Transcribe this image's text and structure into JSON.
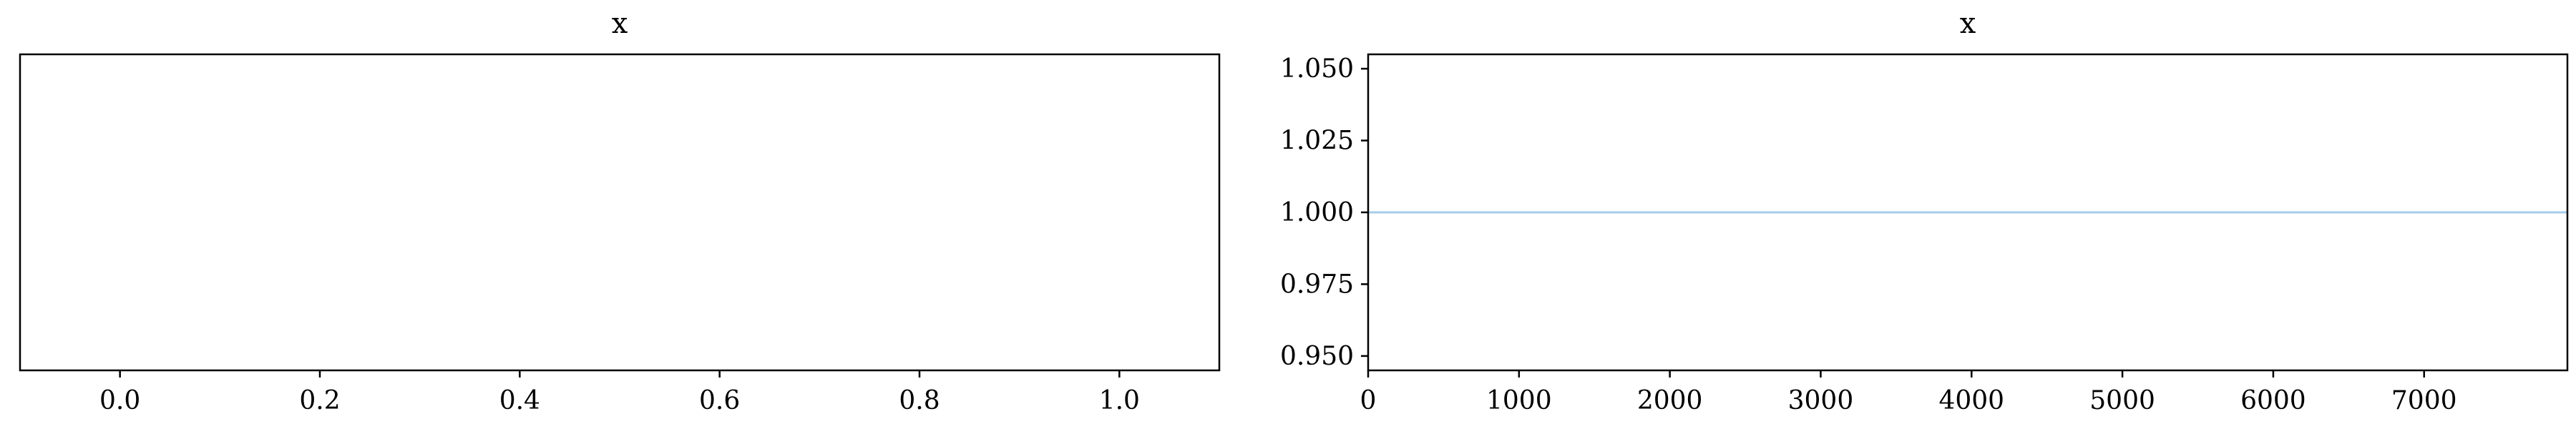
{
  "chart_data": [
    {
      "type": "line",
      "title": "x",
      "xlabel": "",
      "ylabel": "",
      "xlim": [
        -0.1,
        1.1
      ],
      "x_ticks": [
        "0.0",
        "0.2",
        "0.4",
        "0.6",
        "0.8",
        "1.0"
      ],
      "y_ticks": [],
      "series": [],
      "grid": false
    },
    {
      "type": "line",
      "title": "x",
      "xlabel": "",
      "ylabel": "",
      "xlim": [
        0,
        7950
      ],
      "ylim": [
        0.945,
        1.055
      ],
      "x_ticks": [
        "0",
        "1000",
        "2000",
        "3000",
        "4000",
        "5000",
        "6000",
        "7000"
      ],
      "y_ticks": [
        "0.950",
        "0.975",
        "1.000",
        "1.025",
        "1.050"
      ],
      "series": [
        {
          "x": [
            0,
            7950
          ],
          "y": [
            1.0,
            1.0
          ],
          "color": "#a6cde8"
        }
      ],
      "grid": false
    }
  ]
}
